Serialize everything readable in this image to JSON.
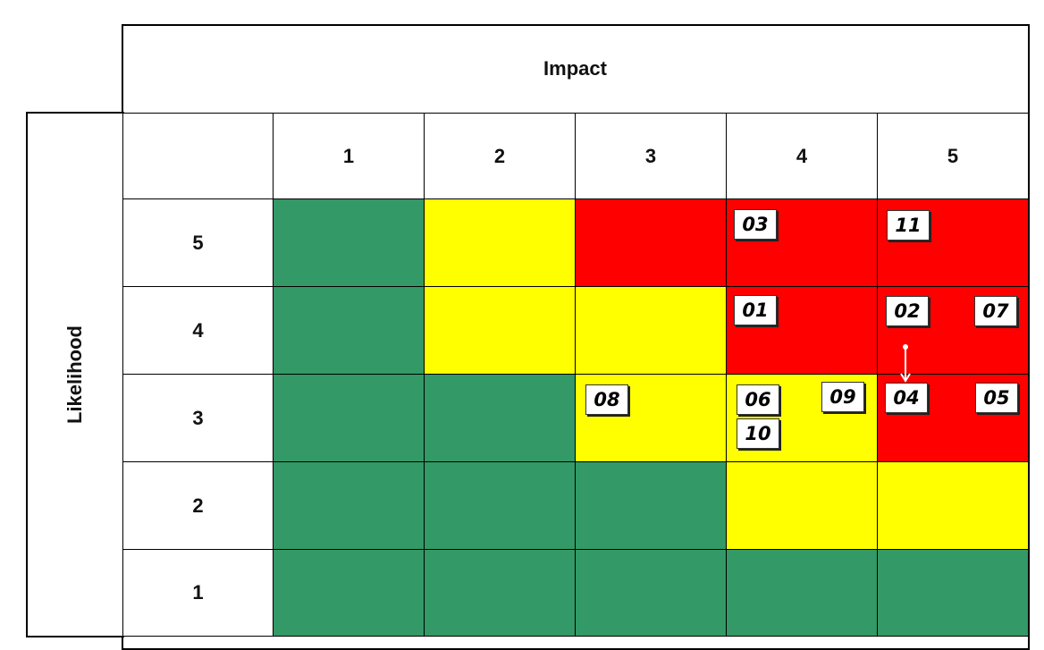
{
  "title_top": "Impact",
  "title_side": "Likelihood",
  "impact_levels": [
    "1",
    "2",
    "3",
    "4",
    "5"
  ],
  "likelihood_levels": [
    "5",
    "4",
    "3",
    "2",
    "1"
  ],
  "colors": {
    "green": "#339966",
    "yellow": "#ffff00",
    "red": "#ff0000"
  },
  "matrix": [
    [
      "green",
      "yellow",
      "red",
      "red",
      "red"
    ],
    [
      "green",
      "yellow",
      "yellow",
      "red",
      "red"
    ],
    [
      "green",
      "green",
      "yellow",
      "yellow",
      "red"
    ],
    [
      "green",
      "green",
      "green",
      "yellow",
      "yellow"
    ],
    [
      "green",
      "green",
      "green",
      "green",
      "green"
    ]
  ],
  "risks": [
    {
      "id": "03",
      "likelihood": 5,
      "impact": 4
    },
    {
      "id": "11",
      "likelihood": 5,
      "impact": 5
    },
    {
      "id": "01",
      "likelihood": 4,
      "impact": 4
    },
    {
      "id": "02",
      "likelihood": 4,
      "impact": 5
    },
    {
      "id": "07",
      "likelihood": 4,
      "impact": 5
    },
    {
      "id": "08",
      "likelihood": 3,
      "impact": 3
    },
    {
      "id": "06",
      "likelihood": 3,
      "impact": 4
    },
    {
      "id": "09",
      "likelihood": 3,
      "impact": 4
    },
    {
      "id": "10",
      "likelihood": 3,
      "impact": 4
    },
    {
      "id": "04",
      "likelihood": 3,
      "impact": 5
    },
    {
      "id": "05",
      "likelihood": 3,
      "impact": 5
    }
  ],
  "movement": {
    "from": "likelihood 4, impact 5",
    "to_risk": "04"
  }
}
